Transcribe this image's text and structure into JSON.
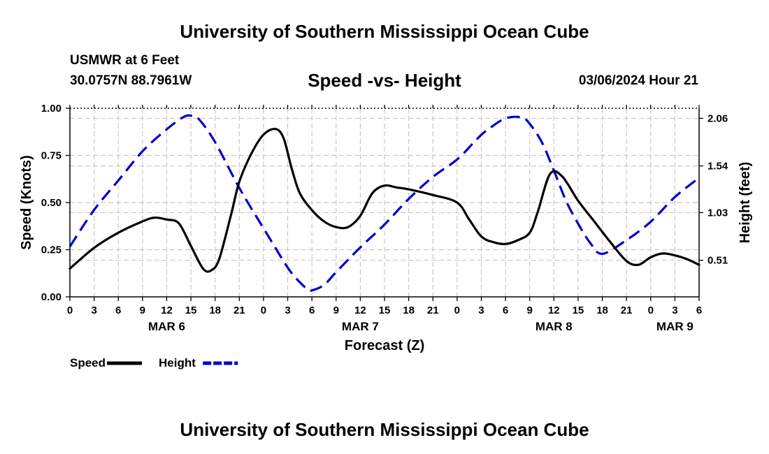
{
  "header": {
    "title": "University of Southern Mississippi Ocean Cube",
    "station": "USMWR at 6 Feet",
    "coords": "30.0757N  88.7961W",
    "subtitle": "Speed -vs- Height",
    "datetime": "03/06/2024 Hour 21"
  },
  "footer": {
    "title": "University of Southern Mississippi Ocean Cube"
  },
  "chart_data": {
    "type": "line",
    "title": "Speed -vs- Height",
    "xlabel": "Forecast (Z)",
    "ylabel": "Speed (Knots)",
    "y2label": "Height (feet)",
    "xlim": [
      0,
      78
    ],
    "ylim": [
      0,
      1.0
    ],
    "y2lim": [
      0.11,
      2.17
    ],
    "grid": true,
    "x_ticks": [
      0,
      3,
      6,
      9,
      12,
      15,
      18,
      21,
      24,
      27,
      30,
      33,
      36,
      39,
      42,
      45,
      48,
      51,
      54,
      57,
      60,
      63,
      66,
      69,
      72,
      75,
      78
    ],
    "x_tick_labels": [
      "0",
      "3",
      "6",
      "9",
      "12",
      "15",
      "18",
      "21",
      "0",
      "3",
      "6",
      "9",
      "12",
      "15",
      "18",
      "21",
      "0",
      "3",
      "6",
      "9",
      "12",
      "15",
      "18",
      "21",
      "0",
      "3",
      "6"
    ],
    "date_labels": [
      {
        "x": 12,
        "label": "MAR 6"
      },
      {
        "x": 36,
        "label": "MAR 7"
      },
      {
        "x": 60,
        "label": "MAR 8"
      },
      {
        "x": 75,
        "label": "MAR 9"
      }
    ],
    "y_ticks": [
      0,
      0.25,
      0.5,
      0.75,
      1.0
    ],
    "y_tick_labels": [
      "0.00",
      "0.25",
      "0.50",
      "0.75",
      "1.00"
    ],
    "y2_ticks": [
      0.51,
      1.03,
      1.54,
      2.06
    ],
    "y2_tick_labels": [
      "0.51",
      "1.03",
      "1.54",
      "2.06"
    ],
    "legend_position": "bottom-left",
    "series": [
      {
        "name": "Speed",
        "color": "#000000",
        "style": "solid",
        "axis": "left",
        "x": [
          0,
          3,
          6,
          9,
          10.5,
          12,
          13.5,
          15,
          16.5,
          17.5,
          18.5,
          20,
          21,
          22.5,
          24,
          25.5,
          26.5,
          27.5,
          28.5,
          30,
          31.5,
          33,
          34.5,
          36,
          37.5,
          39,
          40.5,
          42,
          45,
          48,
          49.5,
          51,
          52.5,
          54,
          55.5,
          57,
          58,
          59.5,
          61,
          63,
          65,
          67,
          69,
          70.5,
          72,
          73.5,
          75,
          76.5,
          78
        ],
        "y": [
          0.15,
          0.26,
          0.34,
          0.4,
          0.42,
          0.41,
          0.39,
          0.27,
          0.15,
          0.14,
          0.2,
          0.44,
          0.61,
          0.76,
          0.86,
          0.89,
          0.84,
          0.68,
          0.55,
          0.46,
          0.4,
          0.37,
          0.37,
          0.43,
          0.55,
          0.59,
          0.58,
          0.57,
          0.54,
          0.5,
          0.41,
          0.32,
          0.29,
          0.28,
          0.3,
          0.34,
          0.45,
          0.65,
          0.64,
          0.51,
          0.4,
          0.29,
          0.19,
          0.17,
          0.21,
          0.23,
          0.22,
          0.2,
          0.17
        ]
      },
      {
        "name": "Height",
        "color": "#0000cc",
        "style": "dashed",
        "axis": "right",
        "x": [
          0,
          3,
          6,
          9,
          12,
          14,
          15,
          16,
          18,
          21,
          24,
          27,
          28.5,
          29.5,
          30,
          31.5,
          33,
          36,
          39,
          42,
          45,
          48,
          50,
          51,
          52,
          54,
          56,
          57,
          58.5,
          60,
          61.5,
          63,
          64.5,
          66,
          69,
          72,
          75,
          78
        ],
        "y": [
          0.66,
          1.06,
          1.38,
          1.7,
          1.94,
          2.07,
          2.09,
          2.05,
          1.8,
          1.3,
          0.86,
          0.43,
          0.27,
          0.19,
          0.18,
          0.24,
          0.38,
          0.65,
          0.9,
          1.18,
          1.42,
          1.61,
          1.79,
          1.88,
          1.95,
          2.06,
          2.07,
          2.0,
          1.8,
          1.49,
          1.16,
          0.91,
          0.7,
          0.58,
          0.73,
          0.93,
          1.2,
          1.41
        ]
      }
    ]
  }
}
